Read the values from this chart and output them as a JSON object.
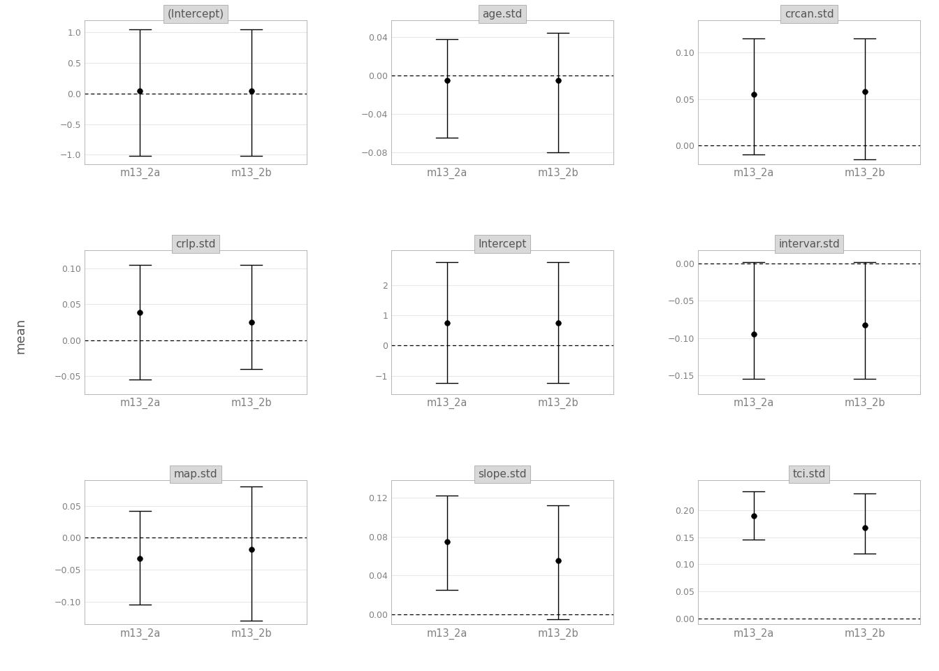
{
  "panels": [
    {
      "title": "(Intercept)",
      "mean": [
        0.04,
        0.04
      ],
      "lower": [
        -1.02,
        -1.02
      ],
      "upper": [
        1.05,
        1.05
      ],
      "hline": 0.0,
      "ylim": [
        -1.15,
        1.2
      ],
      "yticks": [
        -1.0,
        -0.5,
        0.0,
        0.5,
        1.0
      ]
    },
    {
      "title": "age.std",
      "mean": [
        -0.005,
        -0.005
      ],
      "lower": [
        -0.065,
        -0.08
      ],
      "upper": [
        0.038,
        0.045
      ],
      "hline": 0.0,
      "ylim": [
        -0.092,
        0.058
      ],
      "yticks": [
        -0.08,
        -0.04,
        0.0,
        0.04
      ]
    },
    {
      "title": "crcan.std",
      "mean": [
        0.055,
        0.058
      ],
      "lower": [
        -0.01,
        -0.015
      ],
      "upper": [
        0.115,
        0.115
      ],
      "hline": 0.0,
      "ylim": [
        -0.02,
        0.135
      ],
      "yticks": [
        0.0,
        0.05,
        0.1
      ]
    },
    {
      "title": "crlp.std",
      "mean": [
        0.038,
        0.025
      ],
      "lower": [
        -0.055,
        -0.04
      ],
      "upper": [
        0.105,
        0.105
      ],
      "hline": 0.0,
      "ylim": [
        -0.075,
        0.125
      ],
      "yticks": [
        -0.05,
        0.0,
        0.05,
        0.1
      ]
    },
    {
      "title": "Intercept",
      "mean": [
        0.75,
        0.75
      ],
      "lower": [
        -1.25,
        -1.25
      ],
      "upper": [
        2.75,
        2.75
      ],
      "hline": 0.0,
      "ylim": [
        -1.6,
        3.15
      ],
      "yticks": [
        -1,
        0,
        1,
        2
      ]
    },
    {
      "title": "intervar.std",
      "mean": [
        -0.095,
        -0.082
      ],
      "lower": [
        -0.155,
        -0.155
      ],
      "upper": [
        0.002,
        0.002
      ],
      "hline": 0.0,
      "ylim": [
        -0.175,
        0.018
      ],
      "yticks": [
        -0.15,
        -0.1,
        -0.05,
        0.0
      ]
    },
    {
      "title": "map.std",
      "mean": [
        -0.032,
        -0.018
      ],
      "lower": [
        -0.105,
        -0.13
      ],
      "upper": [
        0.042,
        0.08
      ],
      "hline": 0.0,
      "ylim": [
        -0.135,
        0.09
      ],
      "yticks": [
        -0.1,
        -0.05,
        0.0,
        0.05
      ]
    },
    {
      "title": "slope.std",
      "mean": [
        0.075,
        0.055
      ],
      "lower": [
        0.025,
        -0.005
      ],
      "upper": [
        0.122,
        0.112
      ],
      "hline": 0.0,
      "ylim": [
        -0.01,
        0.138
      ],
      "yticks": [
        0.0,
        0.04,
        0.08,
        0.12
      ]
    },
    {
      "title": "tci.std",
      "mean": [
        0.19,
        0.168
      ],
      "lower": [
        0.145,
        0.12
      ],
      "upper": [
        0.235,
        0.23
      ],
      "hline": 0.0,
      "ylim": [
        -0.01,
        0.255
      ],
      "yticks": [
        0.0,
        0.05,
        0.1,
        0.15,
        0.2
      ]
    }
  ],
  "x_positions": [
    1,
    2
  ],
  "x_labels": [
    "m13_2a",
    "m13_2b"
  ],
  "ylabel": "mean",
  "background_color": "#ffffff",
  "panel_bg": "#ffffff",
  "strip_bg": "#d9d9d9",
  "strip_border": "#a0a0a0",
  "grid_color": "#e8e8e8",
  "point_color": "#000000",
  "line_color": "#000000",
  "hline_color": "#000000",
  "tick_label_color": "#808080",
  "title_color": "#555555",
  "ylabel_color": "#555555",
  "panel_border_color": "#aaaaaa"
}
